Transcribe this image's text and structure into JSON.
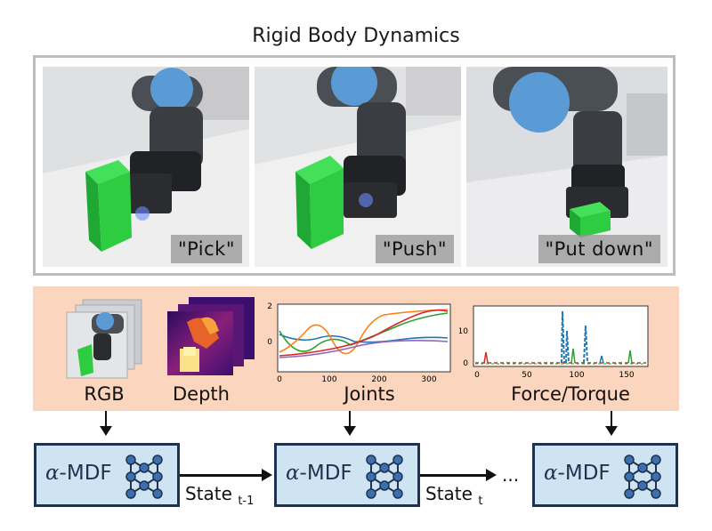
{
  "title": "Rigid Body Dynamics",
  "photos": [
    {
      "caption": "\"Pick\""
    },
    {
      "caption": "\"Push\""
    },
    {
      "caption": "\"Put down\""
    }
  ],
  "sensors": {
    "rgb": "RGB",
    "depth": "Depth",
    "joints": "Joints",
    "force": "Force/Torque"
  },
  "joints_plot": {
    "y_ticks": [
      "2",
      "0"
    ],
    "x_ticks": [
      "0",
      "100",
      "200",
      "300"
    ]
  },
  "force_plot": {
    "y_ticks": [
      "10",
      "0"
    ],
    "x_ticks": [
      "0",
      "50",
      "100",
      "150"
    ]
  },
  "model": {
    "prefix": "α",
    "name": "-MDF"
  },
  "states": {
    "first": "State",
    "first_sub": "t-1",
    "second": "State",
    "second_sub": "t",
    "ellipsis": "..."
  },
  "colors": {
    "photo_border": "#bdbdbd",
    "band": "#fbd5bd",
    "box_fill": "#cfe4f3",
    "box_border": "#1f3350",
    "cube_green": "#2ecc40",
    "robot_blue": "#5b9bd5"
  }
}
